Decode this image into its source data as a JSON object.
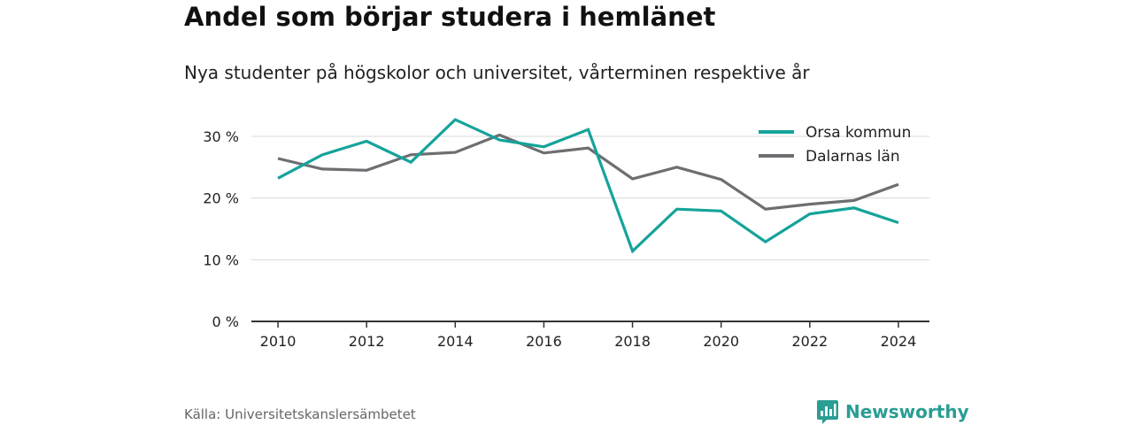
{
  "header": {
    "title": "Andel som börjar studera i hemlänet",
    "subtitle": "Nya studenter på högskolor och universitet, vårterminen respektive år"
  },
  "footer": {
    "source": "Källa: Universitetskanslersämbetet",
    "brand": "Newsworthy"
  },
  "colors": {
    "accent": "#15a39a",
    "secondary": "#6e6e72",
    "grid": "#d9d9d9",
    "axis": "#333333",
    "brand": "#2a9d94"
  },
  "icons": {
    "brand_logo": "bar-chart-speech-bubble-icon"
  },
  "chart_data": {
    "type": "line",
    "title": "Andel som börjar studera i hemlänet",
    "subtitle": "Nya studenter på högskolor och universitet, vårterminen respektive år",
    "xlabel": "",
    "ylabel": "",
    "x": [
      2010,
      2011,
      2012,
      2013,
      2014,
      2015,
      2016,
      2017,
      2018,
      2019,
      2020,
      2021,
      2022,
      2023,
      2024
    ],
    "xticks": [
      2010,
      2012,
      2014,
      2016,
      2018,
      2020,
      2022,
      2024
    ],
    "xtick_labels": [
      "2010",
      "2012",
      "2014",
      "2016",
      "2018",
      "2020",
      "2022",
      "2024"
    ],
    "xlim": [
      2009.4,
      2024.7
    ],
    "ylim": [
      0,
      32
    ],
    "yticks": [
      0,
      10,
      20,
      30
    ],
    "ytick_labels": [
      "0 %",
      "10 %",
      "20 %",
      "30 %"
    ],
    "grid": true,
    "legend_position": "top-right",
    "series": [
      {
        "name": "Orsa kommun",
        "color": "#15a39a",
        "values": [
          23.2,
          27.0,
          29.2,
          25.8,
          32.7,
          29.4,
          28.3,
          31.1,
          11.4,
          18.2,
          17.9,
          12.9,
          17.4,
          18.4,
          16.0
        ]
      },
      {
        "name": "Dalarnas län",
        "color": "#6e6e72",
        "values": [
          26.4,
          24.7,
          24.5,
          27.0,
          27.4,
          30.2,
          27.3,
          28.1,
          23.1,
          25.0,
          23.0,
          18.2,
          19.0,
          19.6,
          22.2
        ]
      }
    ]
  }
}
